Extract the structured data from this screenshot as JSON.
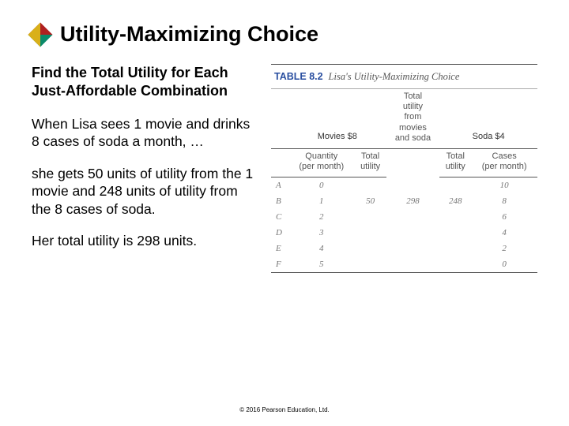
{
  "title": "Utility-Maximizing Choice",
  "subhead": "Find the Total Utility for Each Just-Affordable Combination",
  "para1": "When Lisa sees 1 movie and drinks 8 cases of soda a month, …",
  "para2": "she gets 50 units of utility from the 1 movie and 248 units of utility from the 8 cases of soda.",
  "para3": "Her total utility is 298 units.",
  "copyright": "© 2016 Pearson Education, Ltd.",
  "table": {
    "badge": "TABLE 8.2",
    "name": "Lisa's Utility-Maximizing Choice",
    "colgroup_movies": "Movies $8",
    "colgroup_soda": "Soda $4",
    "headers": {
      "blank": "",
      "qty": "Quantity",
      "qty_sub": "(per month)",
      "tu": "Total",
      "tu2": "utility",
      "mid1": "Total",
      "mid2": "utility",
      "mid3": "from",
      "mid4": "movies",
      "mid5": "and soda",
      "tu_s": "Total",
      "tu_s2": "utility",
      "cases": "Cases",
      "cases_sub": "(per month)"
    },
    "rows": [
      {
        "lab": "A",
        "q": "0",
        "tu": "",
        "mid": "",
        "tus": "",
        "c": "10"
      },
      {
        "lab": "B",
        "q": "1",
        "tu": "50",
        "mid": "298",
        "tus": "248",
        "c": "8"
      },
      {
        "lab": "C",
        "q": "2",
        "tu": "",
        "mid": "",
        "tus": "",
        "c": "6"
      },
      {
        "lab": "D",
        "q": "3",
        "tu": "",
        "mid": "",
        "tus": "",
        "c": "4"
      },
      {
        "lab": "E",
        "q": "4",
        "tu": "",
        "mid": "",
        "tus": "",
        "c": "2"
      },
      {
        "lab": "F",
        "q": "5",
        "tu": "",
        "mid": "",
        "tus": "",
        "c": "0"
      }
    ]
  }
}
